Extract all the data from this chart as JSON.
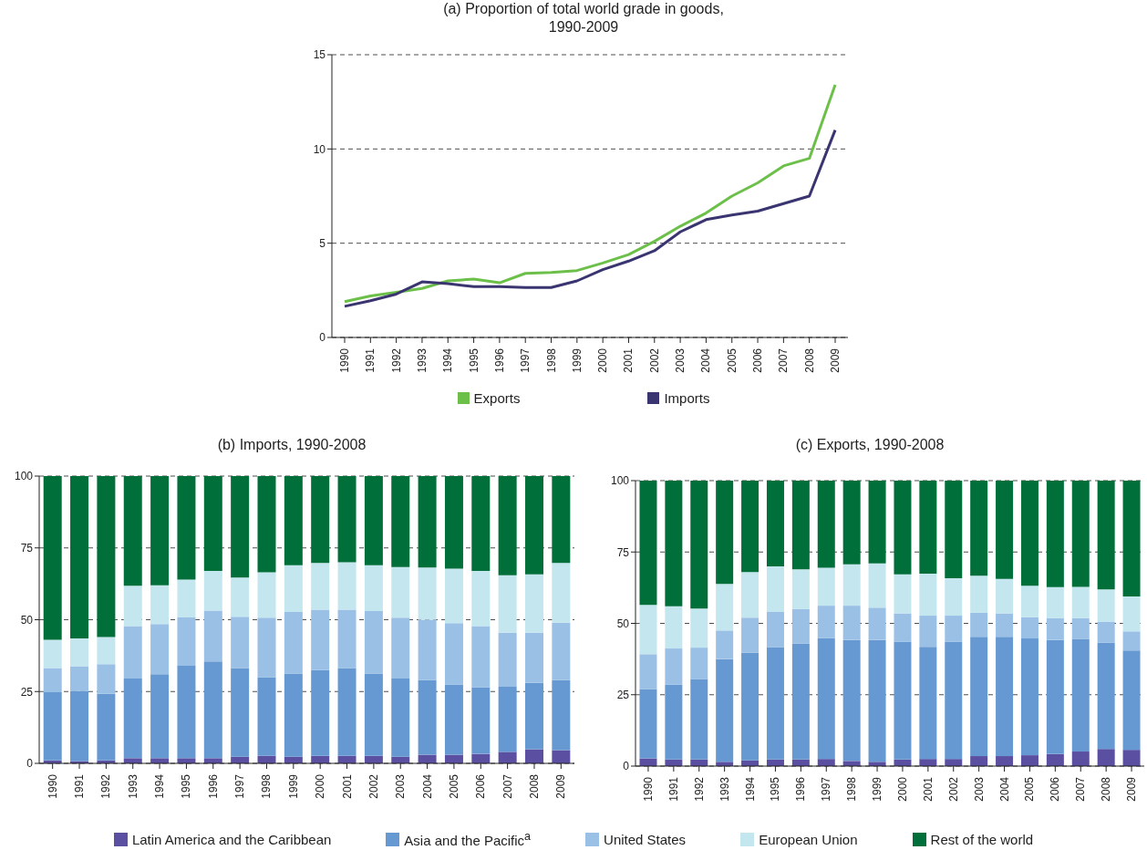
{
  "chart_data": [
    {
      "type": "line",
      "title": "(a) Proportion of total world grade in goods, 1990-2009",
      "categories": [
        "1990",
        "1991",
        "1992",
        "1993",
        "1994",
        "1995",
        "1996",
        "1997",
        "1998",
        "1999",
        "2000",
        "2001",
        "2002",
        "2003",
        "2004",
        "2005",
        "2006",
        "2007",
        "2008",
        "2009"
      ],
      "series": [
        {
          "name": "Exports",
          "color": "#6cc04a",
          "values": [
            1.9,
            2.2,
            2.4,
            2.6,
            3.0,
            3.1,
            2.9,
            3.4,
            3.45,
            3.55,
            3.95,
            4.4,
            5.1,
            5.9,
            6.6,
            7.5,
            8.2,
            9.1,
            9.5,
            13.4
          ]
        },
        {
          "name": "Imports",
          "color": "#3a3570",
          "values": [
            1.65,
            1.95,
            2.3,
            2.95,
            2.85,
            2.7,
            2.7,
            2.65,
            2.65,
            3.0,
            3.6,
            4.05,
            4.6,
            5.6,
            6.25,
            6.5,
            6.7,
            7.1,
            7.5,
            11.0
          ]
        }
      ],
      "ylim": [
        0,
        15
      ],
      "yticks": [
        0,
        5,
        10,
        15
      ],
      "grid": "y",
      "legend": "bottom"
    },
    {
      "type": "bar",
      "stacked": true,
      "title": "(b) Imports, 1990-2008",
      "categories": [
        "1990",
        "1991",
        "1992",
        "1993",
        "1994",
        "1995",
        "1996",
        "1997",
        "1998",
        "1999",
        "2000",
        "2001",
        "2002",
        "2003",
        "2004",
        "2005",
        "2006",
        "2007",
        "2008",
        "2009"
      ],
      "series": [
        {
          "name": "Latin America and the Caribbean",
          "color": "#5a4fa0",
          "values": [
            1,
            0.8,
            1,
            1.8,
            1.8,
            1.8,
            1.8,
            2.3,
            2.6,
            2.3,
            2.6,
            2.6,
            2.6,
            2.3,
            3,
            3,
            3.3,
            4,
            4.9,
            4.6
          ]
        },
        {
          "name": "Asia and the Pacific$^{a}$",
          "color": "#6699d2",
          "values": [
            23.8,
            24.4,
            23.2,
            27.7,
            29.2,
            32.2,
            33.7,
            30.9,
            27.4,
            29,
            29.9,
            30.6,
            28.7,
            27.2,
            26,
            24.5,
            23.2,
            22.7,
            23.1,
            24.4
          ]
        },
        {
          "name": "United States",
          "color": "#9ac0e6",
          "values": [
            8.4,
            8.6,
            10.3,
            18.3,
            17.5,
            16.8,
            17.7,
            17.8,
            20.7,
            21.4,
            21,
            20.3,
            21.7,
            21.2,
            21,
            21.3,
            21.3,
            18.8,
            17.5,
            20
          ]
        },
        {
          "name": "European Union",
          "color": "#c4e6ef",
          "values": [
            9.8,
            9.7,
            9.5,
            14,
            13.5,
            13.2,
            13.8,
            13.7,
            15.8,
            16.3,
            16.3,
            16.5,
            16,
            17.6,
            18.2,
            19,
            19.2,
            20,
            20.3,
            20.8
          ]
        },
        {
          "name": "Rest of the world",
          "color": "#006f3a",
          "values": [
            57,
            56.5,
            56,
            38.2,
            38,
            36,
            33,
            35.3,
            33.5,
            31,
            30.2,
            30,
            31,
            31.7,
            31.8,
            32.2,
            33,
            34.5,
            34.2,
            30.2
          ]
        }
      ],
      "ylim": [
        0,
        100
      ],
      "yticks": [
        0,
        25,
        50,
        75,
        100
      ],
      "grid": "y",
      "legend": "bottom"
    },
    {
      "type": "bar",
      "stacked": true,
      "title": "(c) Exports, 1990-2008",
      "categories": [
        "1990",
        "1991",
        "1992",
        "1993",
        "1994",
        "1995",
        "1996",
        "1997",
        "1998",
        "1999",
        "2000",
        "2001",
        "2002",
        "2003",
        "2004",
        "2005",
        "2006",
        "2007",
        "2008",
        "2009"
      ],
      "series": [
        {
          "color": "#5a4fa0",
          "values": [
            2.7,
            2.3,
            2.3,
            1.5,
            2,
            2.3,
            2.3,
            2.5,
            1.8,
            1.5,
            2.3,
            2.5,
            2.5,
            3.5,
            3.5,
            3.8,
            4.2,
            5.1,
            6,
            5.7
          ]
        },
        {
          "color": "#6699d2",
          "values": [
            24.3,
            26.2,
            28.2,
            36,
            37.7,
            39.4,
            40.7,
            42.3,
            42.4,
            42.7,
            41.2,
            39.3,
            41,
            41.8,
            41.8,
            40.9,
            40,
            39.5,
            37.2,
            34.8
          ]
        },
        {
          "color": "#9ac0e6",
          "values": [
            12.2,
            12.7,
            11,
            10,
            12.3,
            12.3,
            12,
            11.4,
            12,
            11.3,
            10,
            10.9,
            9.2,
            8.4,
            8.2,
            7.5,
            7.6,
            7.2,
            7.3,
            6.7
          ]
        },
        {
          "color": "#c4e6ef",
          "values": [
            17.3,
            14.8,
            13.7,
            16.3,
            16,
            16,
            13.9,
            13.3,
            14.5,
            15.5,
            13.7,
            14.7,
            13.1,
            13,
            12.1,
            11,
            10.9,
            11,
            11.4,
            12.2
          ]
        },
        {
          "color": "#006f3a",
          "values": [
            43.5,
            44,
            44.8,
            36.2,
            32,
            30,
            31.1,
            30.5,
            29.3,
            29,
            32.8,
            32.6,
            34.2,
            33.3,
            34.4,
            36.8,
            37.3,
            37.2,
            38.1,
            40.6
          ]
        }
      ],
      "ylim": [
        0,
        100
      ],
      "yticks": [
        0,
        25,
        50,
        75,
        100
      ],
      "grid": "y"
    }
  ]
}
